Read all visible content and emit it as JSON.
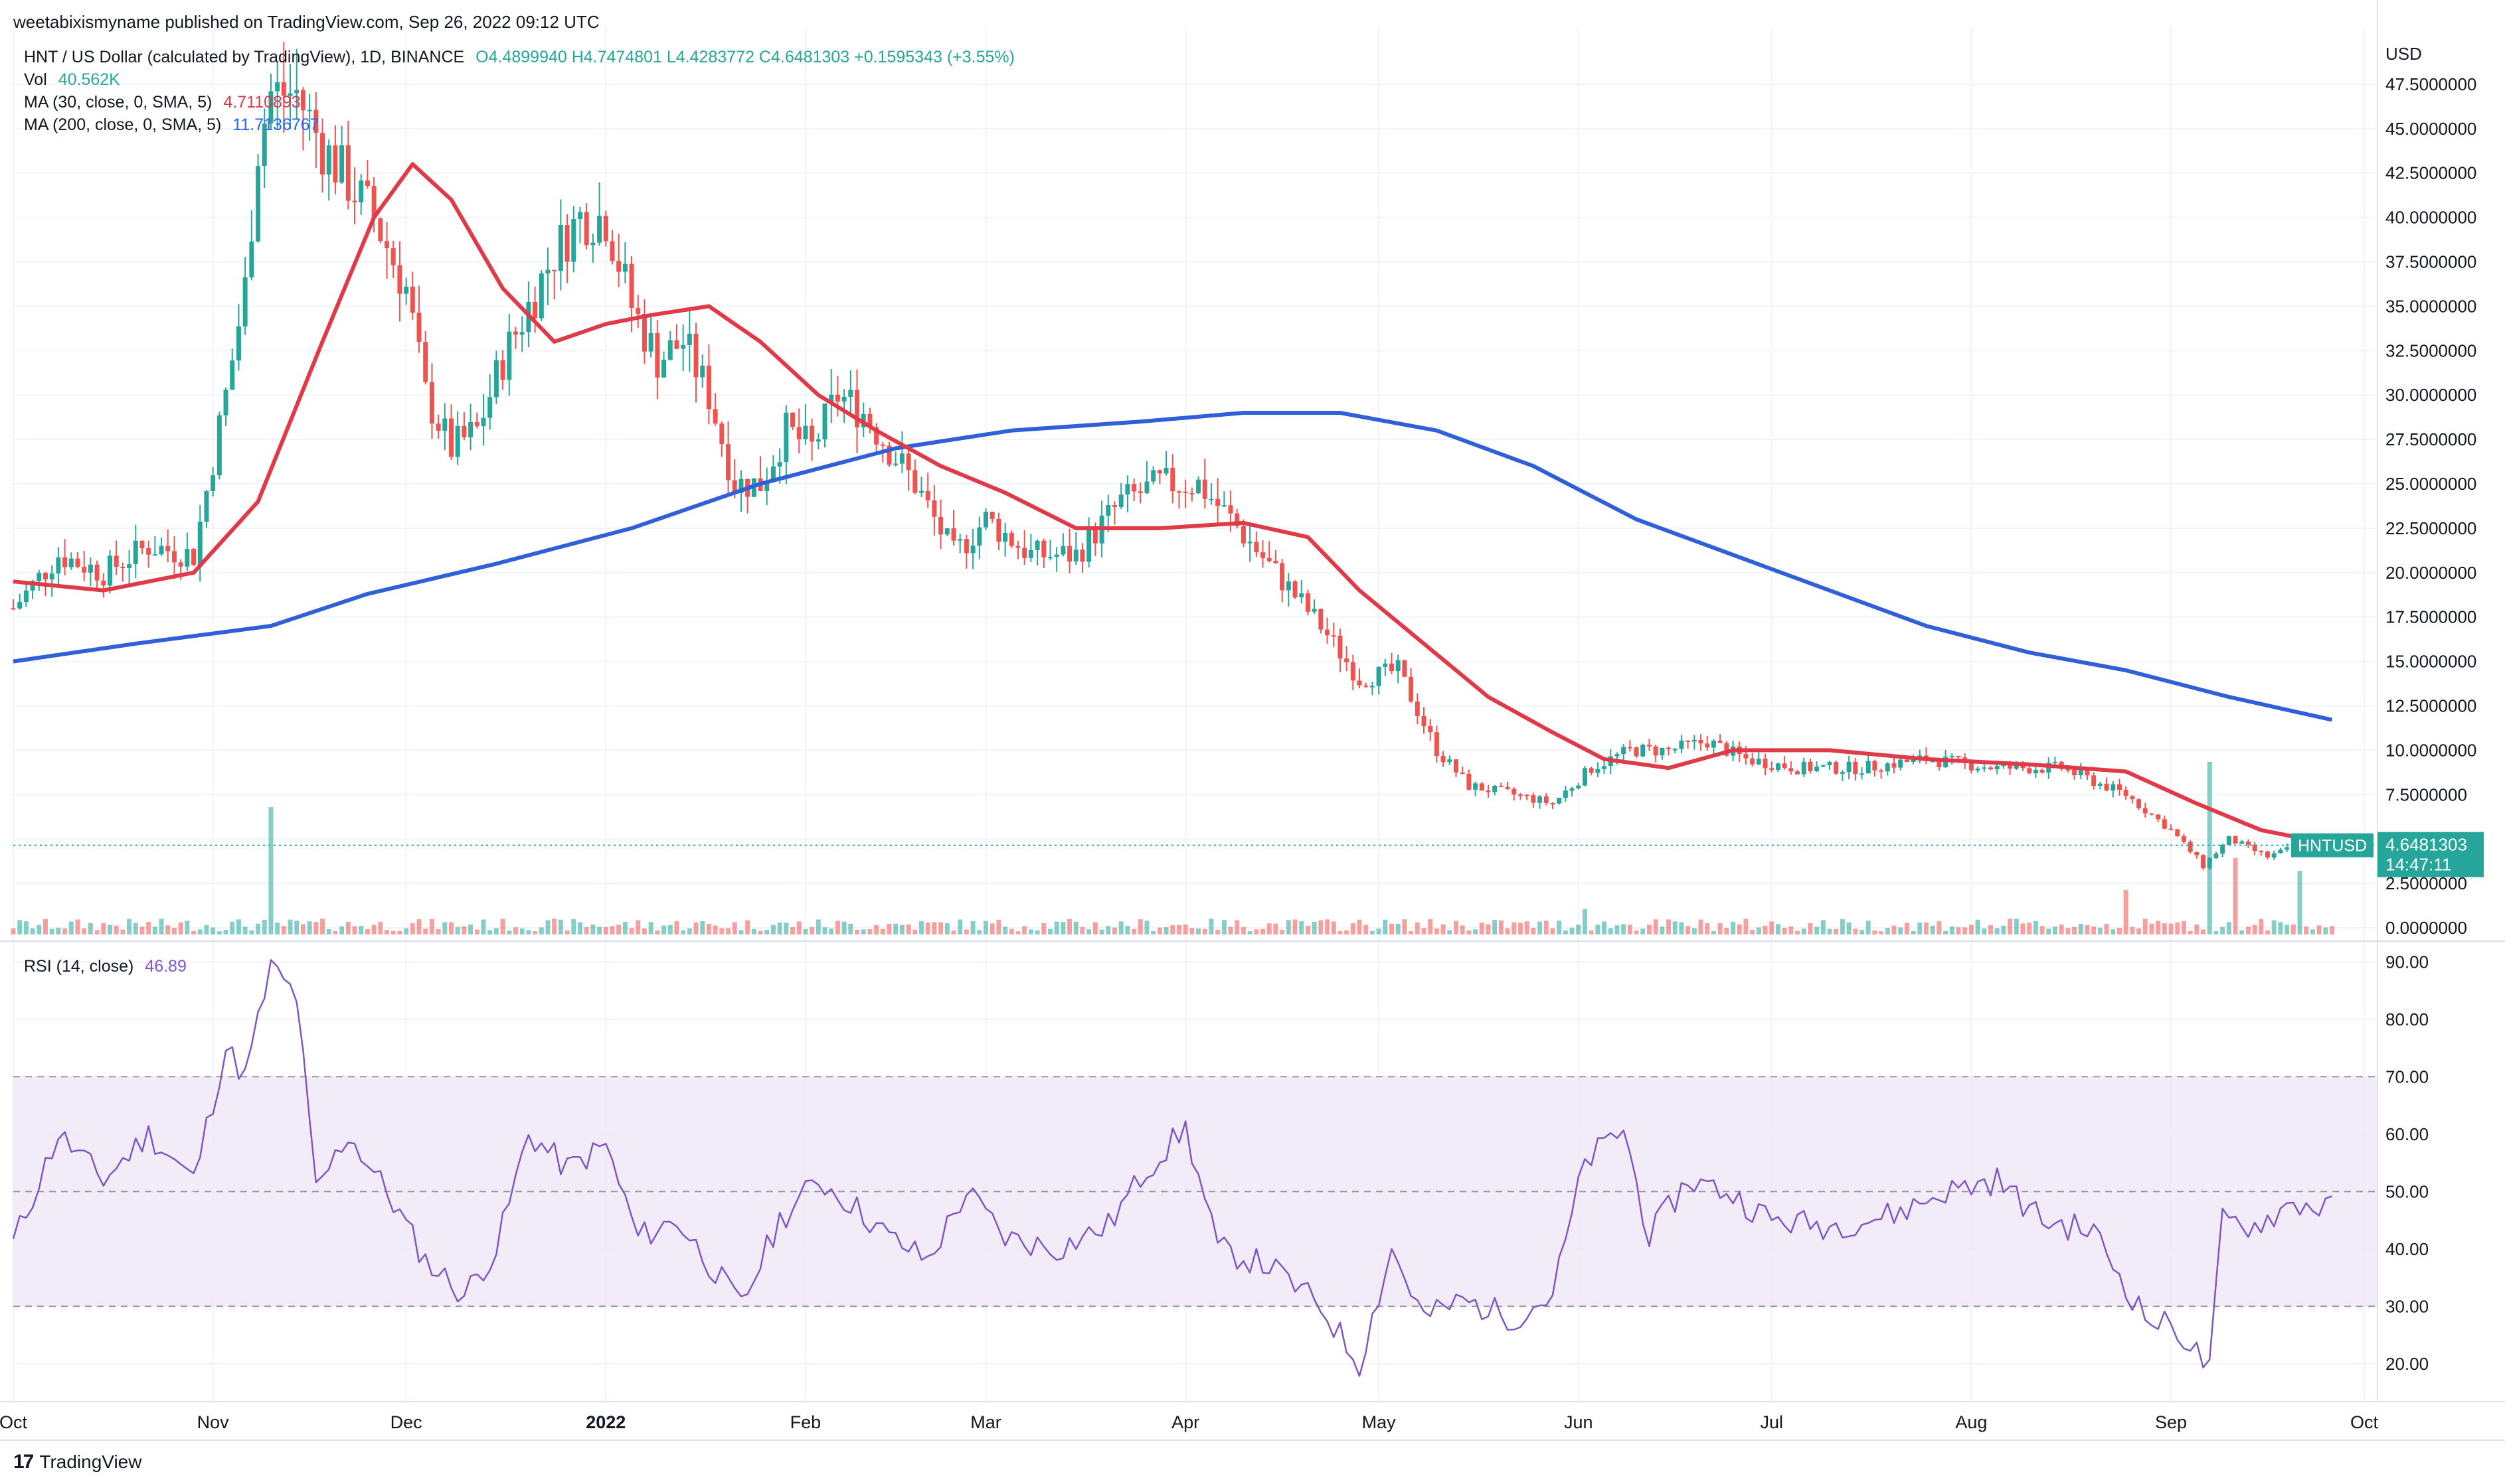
{
  "header": {
    "published": "weetabixismyname published on TradingView.com, Sep 26, 2022 09:12 UTC"
  },
  "legend": {
    "symbol": "HNT / US Dollar (calculated by TradingView), 1D, BINANCE",
    "ohlc": "O4.4899940 H4.7474801 L4.4283772 C4.6481303 +0.1595343 (+3.55%)",
    "vol_label": "Vol",
    "vol_value": "40.562K",
    "ma30_label": "MA (30, close, 0, SMA, 5)",
    "ma30_value": "4.7110893",
    "ma200_label": "MA (200, close, 0, SMA, 5)",
    "ma200_value": "11.7136767",
    "rsi_label": "RSI (14, close)",
    "rsi_value": "46.89"
  },
  "price_axis": {
    "currency": "USD",
    "ticks": [
      "47.5000000",
      "45.0000000",
      "42.5000000",
      "40.0000000",
      "37.5000000",
      "35.0000000",
      "32.5000000",
      "30.0000000",
      "27.5000000",
      "25.0000000",
      "22.5000000",
      "20.0000000",
      "17.5000000",
      "15.0000000",
      "12.5000000",
      "10.0000000",
      "7.5000000",
      "5.0000000",
      "2.5000000",
      "0.0000000"
    ],
    "last_symbol": "HNTUSD",
    "last_price": "4.6481303",
    "countdown": "14:47:11"
  },
  "rsi_axis": {
    "ticks": [
      "90.00",
      "80.00",
      "70.00",
      "60.00",
      "50.00",
      "40.00",
      "30.00",
      "20.00"
    ]
  },
  "time_axis": {
    "labels": [
      "Oct",
      "Nov",
      "Dec",
      "2022",
      "Feb",
      "Mar",
      "Apr",
      "May",
      "Jun",
      "Jul",
      "Aug",
      "Sep",
      "Oct"
    ]
  },
  "footer": {
    "brand": "TradingView"
  },
  "colors": {
    "up": "#26a69a",
    "down": "#ef5350",
    "ma30": "#e03a48",
    "ma200": "#2f5fd9",
    "rsi": "#7e57c2",
    "rsi_band": "#ede7f6"
  },
  "chart_data": {
    "type": "candlestick",
    "symbol": "HNTUSD",
    "interval": "1D",
    "exchange": "BINANCE",
    "y_range": [
      0,
      50
    ],
    "rsi_range": [
      15,
      92
    ],
    "x_range": [
      "2021-10-01",
      "2022-10-01"
    ],
    "close_points": [
      [
        "2021-10-01",
        18
      ],
      [
        "2021-10-08",
        21
      ],
      [
        "2021-10-15",
        20
      ],
      [
        "2021-10-22",
        21.5
      ],
      [
        "2021-10-29",
        21
      ],
      [
        "2021-11-03",
        30
      ],
      [
        "2021-11-06",
        36
      ],
      [
        "2021-11-08",
        44
      ],
      [
        "2021-11-10",
        47
      ],
      [
        "2021-11-14",
        47
      ],
      [
        "2021-11-18",
        44
      ],
      [
        "2021-11-22",
        42
      ],
      [
        "2021-11-26",
        40
      ],
      [
        "2021-12-01",
        36
      ],
      [
        "2021-12-04",
        30
      ],
      [
        "2021-12-08",
        27
      ],
      [
        "2021-12-12",
        28
      ],
      [
        "2021-12-16",
        32
      ],
      [
        "2021-12-20",
        35
      ],
      [
        "2021-12-24",
        38
      ],
      [
        "2021-12-28",
        40
      ],
      [
        "2022-01-01",
        40
      ],
      [
        "2022-01-05",
        35
      ],
      [
        "2022-01-09",
        32
      ],
      [
        "2022-01-13",
        33
      ],
      [
        "2022-01-17",
        30
      ],
      [
        "2022-01-21",
        25
      ],
      [
        "2022-01-25",
        25
      ],
      [
        "2022-01-29",
        28
      ],
      [
        "2022-02-02",
        27
      ],
      [
        "2022-02-06",
        30
      ],
      [
        "2022-02-10",
        29
      ],
      [
        "2022-02-14",
        27
      ],
      [
        "2022-02-18",
        25
      ],
      [
        "2022-02-24",
        21
      ],
      [
        "2022-03-01",
        23
      ],
      [
        "2022-03-08",
        21
      ],
      [
        "2022-03-15",
        21
      ],
      [
        "2022-03-22",
        24
      ],
      [
        "2022-03-28",
        25
      ],
      [
        "2022-04-03",
        25
      ],
      [
        "2022-04-08",
        23
      ],
      [
        "2022-04-15",
        20
      ],
      [
        "2022-04-22",
        17
      ],
      [
        "2022-04-28",
        14
      ],
      [
        "2022-05-04",
        14.5
      ],
      [
        "2022-05-10",
        10
      ],
      [
        "2022-05-15",
        8
      ],
      [
        "2022-05-22",
        7.5
      ],
      [
        "2022-05-28",
        7
      ],
      [
        "2022-06-03",
        9
      ],
      [
        "2022-06-09",
        10
      ],
      [
        "2022-06-15",
        10
      ],
      [
        "2022-06-21",
        10.5
      ],
      [
        "2022-06-27",
        9.5
      ],
      [
        "2022-07-05",
        9
      ],
      [
        "2022-07-15",
        9
      ],
      [
        "2022-07-25",
        9.5
      ],
      [
        "2022-08-05",
        9
      ],
      [
        "2022-08-15",
        9
      ],
      [
        "2022-08-25",
        7.5
      ],
      [
        "2022-09-01",
        5.5
      ],
      [
        "2022-09-06",
        3.5
      ],
      [
        "2022-09-10",
        5
      ],
      [
        "2022-09-16",
        4
      ],
      [
        "2022-09-20",
        4.5
      ],
      [
        "2022-09-26",
        4.65
      ]
    ],
    "ma30_points": [
      [
        "2021-10-01",
        19.5
      ],
      [
        "2021-10-15",
        19
      ],
      [
        "2021-10-29",
        20
      ],
      [
        "2021-11-08",
        24
      ],
      [
        "2021-11-18",
        33
      ],
      [
        "2021-11-26",
        40
      ],
      [
        "2021-12-02",
        43
      ],
      [
        "2021-12-08",
        41
      ],
      [
        "2021-12-16",
        36
      ],
      [
        "2021-12-24",
        33
      ],
      [
        "2022-01-01",
        34
      ],
      [
        "2022-01-08",
        34.5
      ],
      [
        "2022-01-17",
        35
      ],
      [
        "2022-01-25",
        33
      ],
      [
        "2022-02-03",
        30
      ],
      [
        "2022-02-12",
        28
      ],
      [
        "2022-02-22",
        26
      ],
      [
        "2022-03-04",
        24.5
      ],
      [
        "2022-03-15",
        22.5
      ],
      [
        "2022-03-28",
        22.5
      ],
      [
        "2022-04-10",
        22.8
      ],
      [
        "2022-04-20",
        22
      ],
      [
        "2022-04-28",
        19
      ],
      [
        "2022-05-08",
        16
      ],
      [
        "2022-05-18",
        13
      ],
      [
        "2022-05-28",
        11
      ],
      [
        "2022-06-05",
        9.5
      ],
      [
        "2022-06-15",
        9
      ],
      [
        "2022-06-25",
        10
      ],
      [
        "2022-07-10",
        10
      ],
      [
        "2022-07-25",
        9.5
      ],
      [
        "2022-08-10",
        9.2
      ],
      [
        "2022-08-25",
        8.8
      ],
      [
        "2022-09-05",
        7
      ],
      [
        "2022-09-15",
        5.5
      ],
      [
        "2022-09-26",
        4.71
      ]
    ],
    "ma200_points": [
      [
        "2021-10-01",
        15
      ],
      [
        "2021-10-20",
        16
      ],
      [
        "2021-11-10",
        17
      ],
      [
        "2021-11-25",
        18.8
      ],
      [
        "2021-12-15",
        20.5
      ],
      [
        "2022-01-05",
        22.5
      ],
      [
        "2022-01-25",
        25
      ],
      [
        "2022-02-15",
        27
      ],
      [
        "2022-03-05",
        28
      ],
      [
        "2022-03-25",
        28.5
      ],
      [
        "2022-04-10",
        29
      ],
      [
        "2022-04-25",
        29
      ],
      [
        "2022-05-10",
        28
      ],
      [
        "2022-05-25",
        26
      ],
      [
        "2022-06-10",
        23
      ],
      [
        "2022-06-25",
        21
      ],
      [
        "2022-07-10",
        19
      ],
      [
        "2022-07-25",
        17
      ],
      [
        "2022-08-10",
        15.5
      ],
      [
        "2022-08-25",
        14.5
      ],
      [
        "2022-09-10",
        13
      ],
      [
        "2022-09-26",
        11.71
      ]
    ],
    "rsi_points": [
      [
        "2021-10-01",
        41
      ],
      [
        "2021-10-08",
        60
      ],
      [
        "2021-10-15",
        52
      ],
      [
        "2021-10-22",
        60
      ],
      [
        "2021-10-29",
        52
      ],
      [
        "2021-11-03",
        75
      ],
      [
        "2021-11-06",
        70
      ],
      [
        "2021-11-10",
        89
      ],
      [
        "2021-11-14",
        84
      ],
      [
        "2021-11-17",
        50
      ],
      [
        "2021-11-22",
        60
      ],
      [
        "2021-11-28",
        50
      ],
      [
        "2021-12-04",
        38
      ],
      [
        "2021-12-10",
        32
      ],
      [
        "2021-12-15",
        40
      ],
      [
        "2021-12-20",
        60
      ],
      [
        "2021-12-26",
        54
      ],
      [
        "2022-01-01",
        58
      ],
      [
        "2022-01-06",
        42
      ],
      [
        "2022-01-12",
        45
      ],
      [
        "2022-01-18",
        36
      ],
      [
        "2022-01-22",
        30
      ],
      [
        "2022-01-28",
        45
      ],
      [
        "2022-02-03",
        52
      ],
      [
        "2022-02-08",
        48
      ],
      [
        "2022-02-14",
        42
      ],
      [
        "2022-02-20",
        38
      ],
      [
        "2022-02-26",
        50
      ],
      [
        "2022-03-04",
        42
      ],
      [
        "2022-03-12",
        40
      ],
      [
        "2022-03-20",
        44
      ],
      [
        "2022-03-26",
        54
      ],
      [
        "2022-04-01",
        61
      ],
      [
        "2022-04-06",
        40
      ],
      [
        "2022-04-14",
        37
      ],
      [
        "2022-04-22",
        30
      ],
      [
        "2022-04-28",
        20
      ],
      [
        "2022-05-03",
        40
      ],
      [
        "2022-05-08",
        28
      ],
      [
        "2022-05-14",
        31
      ],
      [
        "2022-05-22",
        28
      ],
      [
        "2022-05-28",
        32
      ],
      [
        "2022-06-02",
        55
      ],
      [
        "2022-06-08",
        61
      ],
      [
        "2022-06-12",
        42
      ],
      [
        "2022-06-18",
        52
      ],
      [
        "2022-06-24",
        50
      ],
      [
        "2022-07-01",
        45
      ],
      [
        "2022-07-10",
        44
      ],
      [
        "2022-07-20",
        46
      ],
      [
        "2022-07-28",
        50
      ],
      [
        "2022-08-05",
        52
      ],
      [
        "2022-08-12",
        45
      ],
      [
        "2022-08-20",
        43
      ],
      [
        "2022-08-28",
        28
      ],
      [
        "2022-09-02",
        26
      ],
      [
        "2022-09-07",
        19
      ],
      [
        "2022-09-09",
        45
      ],
      [
        "2022-09-14",
        44
      ],
      [
        "2022-09-20",
        48
      ],
      [
        "2022-09-26",
        46.89
      ]
    ],
    "volume_spikes": [
      [
        "2021-11-10",
        40
      ],
      [
        "2022-09-07",
        62
      ],
      [
        "2022-09-11",
        24
      ],
      [
        "2022-09-21",
        20
      ],
      [
        "2022-08-25",
        14
      ],
      [
        "2022-06-02",
        8
      ]
    ],
    "rsi_bands": [
      30,
      50,
      70
    ],
    "last_price": 4.6481303,
    "grid": true
  }
}
